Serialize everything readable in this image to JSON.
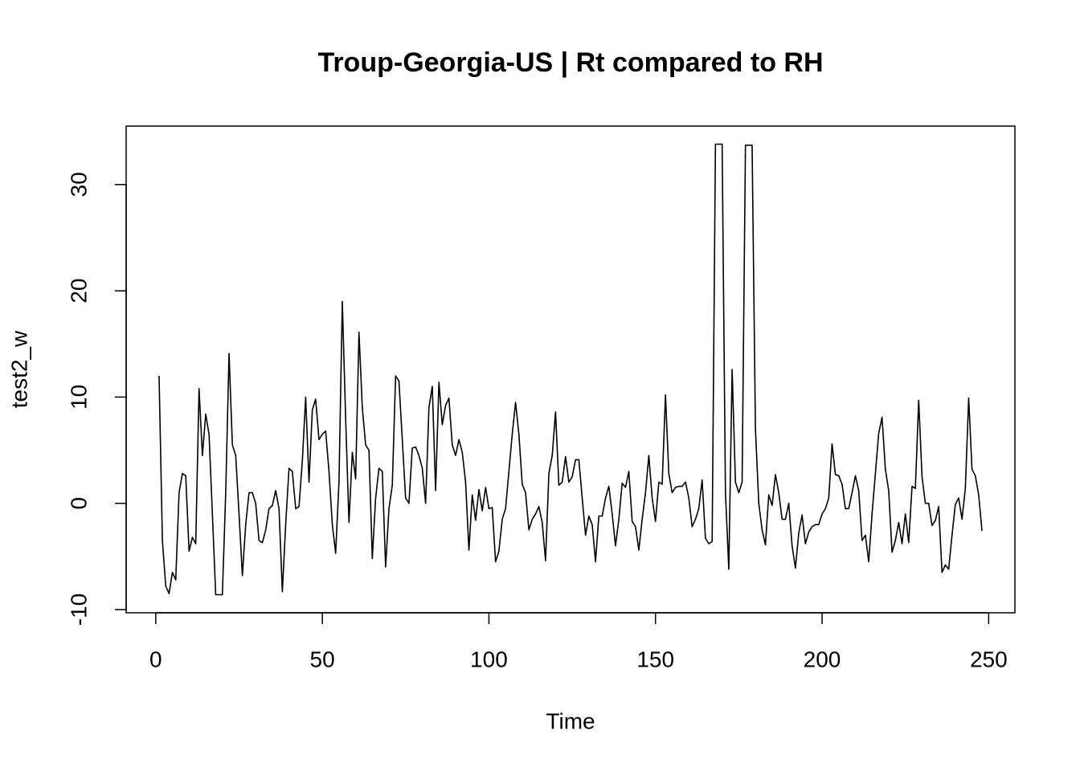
{
  "chart_data": {
    "type": "line",
    "title": "Troup-Georgia-US | Rt compared to RH",
    "xlabel": "Time",
    "ylabel": "test2_w",
    "color": "#000000",
    "xlim": [
      -8.88,
      257.88
    ],
    "ylim": [
      -10.3,
      35.5
    ],
    "xticks": [
      0,
      50,
      100,
      150,
      200,
      250
    ],
    "yticks": [
      -10,
      0,
      10,
      20,
      30
    ],
    "x": [
      1,
      2,
      3,
      4,
      5,
      6,
      7,
      8,
      9,
      10,
      11,
      12,
      13,
      14,
      15,
      16,
      17,
      18,
      19,
      20,
      21,
      22,
      23,
      24,
      25,
      26,
      27,
      28,
      29,
      30,
      31,
      32,
      33,
      34,
      35,
      36,
      37,
      38,
      39,
      40,
      41,
      42,
      43,
      44,
      45,
      46,
      47,
      48,
      49,
      50,
      51,
      52,
      53,
      54,
      55,
      56,
      57,
      58,
      59,
      60,
      61,
      62,
      63,
      64,
      65,
      66,
      67,
      68,
      69,
      70,
      71,
      72,
      73,
      74,
      75,
      76,
      77,
      78,
      79,
      80,
      81,
      82,
      83,
      84,
      85,
      86,
      87,
      88,
      89,
      90,
      91,
      92,
      93,
      94,
      95,
      96,
      97,
      98,
      99,
      100,
      101,
      102,
      103,
      104,
      105,
      106,
      107,
      108,
      109,
      110,
      111,
      112,
      113,
      114,
      115,
      116,
      117,
      118,
      119,
      120,
      121,
      122,
      123,
      124,
      125,
      126,
      127,
      128,
      129,
      130,
      131,
      132,
      133,
      134,
      135,
      136,
      137,
      138,
      139,
      140,
      141,
      142,
      143,
      144,
      145,
      146,
      147,
      148,
      149,
      150,
      151,
      152,
      153,
      154,
      155,
      156,
      157,
      158,
      159,
      160,
      161,
      162,
      163,
      164,
      165,
      166,
      167,
      168,
      169,
      170,
      171,
      172,
      173,
      174,
      175,
      176,
      177,
      178,
      179,
      180,
      181,
      182,
      183,
      184,
      185,
      186,
      187,
      188,
      189,
      190,
      191,
      192,
      193,
      194,
      195,
      196,
      197,
      198,
      199,
      200,
      201,
      202,
      203,
      204,
      205,
      206,
      207,
      208,
      209,
      210,
      211,
      212,
      213,
      214,
      215,
      216,
      217,
      218,
      219,
      220,
      221,
      222,
      223,
      224,
      225,
      226,
      227,
      228,
      229,
      230,
      231,
      232,
      233,
      234,
      235,
      236,
      237,
      238,
      239,
      240,
      241,
      242,
      243,
      244,
      245,
      246,
      247,
      248
    ],
    "values": [
      12,
      -3.5,
      -7.8,
      -8.5,
      -6.5,
      -7.2,
      1,
      2.8,
      2.6,
      -4.5,
      -3.2,
      -3.8,
      10.8,
      4.5,
      8.4,
      6.5,
      -1,
      -8.6,
      -8.6,
      -8.6,
      1,
      14.1,
      5.5,
      4.5,
      -1,
      -6.8,
      -2,
      1,
      1,
      0,
      -3.5,
      -3.7,
      -2.5,
      -0.5,
      -0.2,
      1.2,
      -0.5,
      -8.3,
      -2,
      3.3,
      3,
      -0.5,
      -0.3,
      4,
      10,
      2,
      8.8,
      9.8,
      6,
      6.5,
      6.8,
      3,
      -2,
      -4.7,
      2,
      19,
      8,
      -1.8,
      4.8,
      2.3,
      16.1,
      9,
      5.5,
      5,
      -5.2,
      0.5,
      3.3,
      3,
      -6,
      -0.5,
      1.7,
      12,
      11.5,
      6,
      0.5,
      0,
      5.2,
      5.3,
      4.5,
      3.3,
      0,
      9,
      11,
      1.2,
      11.4,
      7.4,
      9.2,
      9.9,
      5.5,
      4.5,
      6,
      4.8,
      2,
      -4.4,
      0.8,
      -1.6,
      1.3,
      -0.7,
      1.5,
      -0.5,
      -0.4,
      -5.5,
      -4.5,
      -1.5,
      -0.5,
      3,
      6.5,
      9.5,
      6.5,
      1.8,
      1,
      -2.5,
      -1.5,
      -1,
      -0.3,
      -1.8,
      -5.4,
      2.8,
      4.5,
      8.6,
      1.7,
      2,
      4.4,
      2,
      2.5,
      4.1,
      4.1,
      0.5,
      -3,
      -1.2,
      -2,
      -5.5,
      -1.2,
      -1.2,
      0.5,
      1.6,
      -1,
      -4,
      -1.5,
      1.9,
      1.5,
      3,
      -1.7,
      -2.2,
      -4.4,
      -1.5,
      1,
      4.5,
      0.5,
      -1.7,
      2,
      1.8,
      10.2,
      2.8,
      1,
      1.5,
      1.6,
      1.6,
      2,
      0.5,
      -2.2,
      -1.5,
      -0.5,
      2.2,
      -3.3,
      -3.8,
      -3.6,
      33.8,
      33.8,
      33.8,
      1,
      -6.2,
      12.6,
      2,
      1,
      2,
      33.7,
      33.7,
      33.7,
      7,
      0,
      -2.5,
      -3.9,
      0.8,
      -0.2,
      2.7,
      1,
      -1.5,
      -1.5,
      0,
      -4,
      -6.1,
      -2.8,
      -1.1,
      -3.8,
      -2.7,
      -2.2,
      -2,
      -2,
      -1,
      -0.5,
      0.5,
      5.6,
      2.7,
      2.6,
      1.8,
      -0.5,
      -0.5,
      1,
      2.6,
      1.2,
      -3.5,
      -3,
      -5.5,
      -1,
      2.8,
      6.6,
      8.1,
      3.2,
      1.2,
      -4.6,
      -3.5,
      -1.8,
      -3.8,
      -1,
      -3.7,
      1.6,
      1.4,
      9.7,
      2.5,
      0,
      0,
      -2.1,
      -1.6,
      -0.3,
      -6.5,
      -5.8,
      -6.2,
      -3,
      -0.1,
      0.5,
      -1.5,
      1.4,
      9.9,
      3.2,
      2.6,
      0.8,
      -2.6
    ]
  }
}
